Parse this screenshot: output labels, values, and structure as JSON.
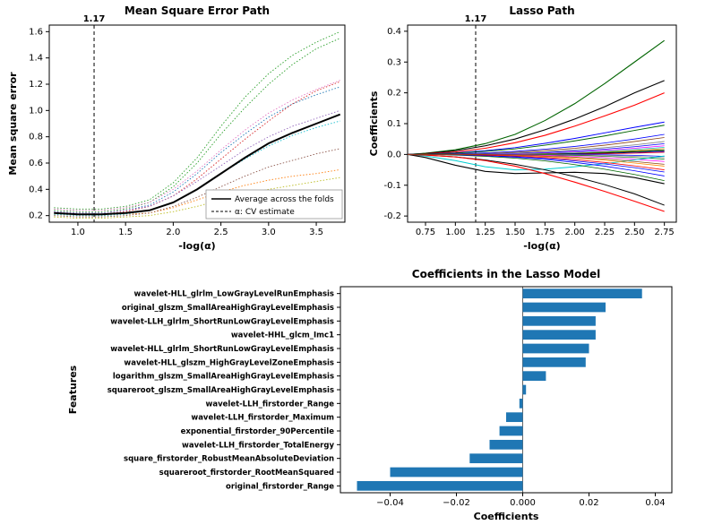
{
  "background_color": "#ffffff",
  "font_family": "DejaVu Sans, Arial, sans-serif",
  "mse_chart": {
    "type": "line",
    "title": "Mean Square Error Path",
    "title_fontsize": 12,
    "xlabel": "-log(α)",
    "ylabel": "Mean square error",
    "label_fontsize": 11,
    "xlim": [
      0.7,
      3.8
    ],
    "ylim": [
      0.15,
      1.65
    ],
    "xtick_step": 0.5,
    "xtick_start": 1.0,
    "ytick_step": 0.2,
    "ytick_start": 0.2,
    "cv_line_x": 1.17,
    "cv_line_label": "1.17",
    "grid_color": "#e0e0e0",
    "border_color": "#000000",
    "legend_items": [
      {
        "label": "Average across the folds",
        "style": "solid",
        "color": "#000000"
      },
      {
        "label": "α: CV estimate",
        "style": "dashed",
        "color": "#000000"
      }
    ],
    "x_values": [
      0.75,
      1.0,
      1.25,
      1.5,
      1.75,
      2.0,
      2.25,
      2.5,
      2.75,
      3.0,
      3.25,
      3.5,
      3.75
    ],
    "average_series": {
      "color": "#000000",
      "width": 2.0,
      "style": "solid",
      "y": [
        0.22,
        0.21,
        0.21,
        0.22,
        0.24,
        0.3,
        0.4,
        0.52,
        0.64,
        0.75,
        0.83,
        0.9,
        0.97
      ]
    },
    "fold_series": [
      {
        "color": "#1f77b4",
        "width": 0.9,
        "style": "dotted",
        "y": [
          0.23,
          0.22,
          0.22,
          0.24,
          0.28,
          0.38,
          0.52,
          0.68,
          0.82,
          0.95,
          1.05,
          1.12,
          1.18
        ]
      },
      {
        "color": "#ff7f0e",
        "width": 0.9,
        "style": "dotted",
        "y": [
          0.21,
          0.2,
          0.2,
          0.21,
          0.22,
          0.26,
          0.32,
          0.38,
          0.43,
          0.47,
          0.5,
          0.52,
          0.55
        ]
      },
      {
        "color": "#2ca02c",
        "width": 0.9,
        "style": "dotted",
        "y": [
          0.24,
          0.23,
          0.23,
          0.25,
          0.3,
          0.42,
          0.6,
          0.82,
          1.02,
          1.2,
          1.35,
          1.47,
          1.55
        ]
      },
      {
        "color": "#d62728",
        "width": 0.9,
        "style": "dotted",
        "y": [
          0.22,
          0.21,
          0.21,
          0.23,
          0.27,
          0.35,
          0.48,
          0.63,
          0.78,
          0.92,
          1.05,
          1.15,
          1.22
        ]
      },
      {
        "color": "#9467bd",
        "width": 0.9,
        "style": "dotted",
        "y": [
          0.23,
          0.22,
          0.22,
          0.24,
          0.27,
          0.35,
          0.46,
          0.58,
          0.7,
          0.8,
          0.88,
          0.94,
          1.0
        ]
      },
      {
        "color": "#8c564b",
        "width": 0.9,
        "style": "dotted",
        "y": [
          0.2,
          0.19,
          0.19,
          0.2,
          0.22,
          0.27,
          0.34,
          0.42,
          0.5,
          0.57,
          0.62,
          0.67,
          0.71
        ]
      },
      {
        "color": "#e377c2",
        "width": 0.9,
        "style": "dotted",
        "y": [
          0.25,
          0.24,
          0.24,
          0.26,
          0.3,
          0.4,
          0.54,
          0.7,
          0.85,
          0.98,
          1.08,
          1.16,
          1.23
        ]
      },
      {
        "color": "#bcbd22",
        "width": 0.9,
        "style": "dotted",
        "y": [
          0.19,
          0.18,
          0.18,
          0.19,
          0.2,
          0.23,
          0.27,
          0.32,
          0.36,
          0.4,
          0.43,
          0.46,
          0.49
        ]
      },
      {
        "color": "#17becf",
        "width": 0.9,
        "style": "dotted",
        "y": [
          0.21,
          0.2,
          0.2,
          0.21,
          0.24,
          0.3,
          0.4,
          0.52,
          0.63,
          0.73,
          0.81,
          0.87,
          0.92
        ]
      },
      {
        "color": "#2ca02c",
        "width": 0.9,
        "style": "dotted",
        "y": [
          0.26,
          0.25,
          0.25,
          0.27,
          0.32,
          0.45,
          0.64,
          0.88,
          1.1,
          1.28,
          1.42,
          1.52,
          1.6
        ]
      }
    ]
  },
  "lasso_chart": {
    "type": "line",
    "title": "Lasso Path",
    "title_fontsize": 12,
    "xlabel": "-log(α)",
    "ylabel": "Coefficients",
    "label_fontsize": 11,
    "xlim": [
      0.6,
      2.85
    ],
    "ylim": [
      -0.22,
      0.42
    ],
    "xticks": [
      0.75,
      1.0,
      1.25,
      1.5,
      1.75,
      2.0,
      2.25,
      2.5,
      2.75
    ],
    "yticks": [
      -0.2,
      -0.1,
      0.0,
      0.1,
      0.2,
      0.3,
      0.4
    ],
    "cv_line_x": 1.17,
    "cv_line_label": "1.17",
    "border_color": "#000000",
    "x_values": [
      0.6,
      0.75,
      1.0,
      1.25,
      1.5,
      1.75,
      2.0,
      2.25,
      2.5,
      2.75
    ],
    "series": [
      {
        "color": "#006400",
        "width": 1.1,
        "y": [
          0,
          0.004,
          0.015,
          0.035,
          0.065,
          0.11,
          0.165,
          0.23,
          0.3,
          0.37
        ]
      },
      {
        "color": "#000000",
        "width": 1.1,
        "y": [
          0,
          0.003,
          0.012,
          0.028,
          0.05,
          0.08,
          0.115,
          0.155,
          0.2,
          0.24
        ]
      },
      {
        "color": "#ff0000",
        "width": 1.1,
        "y": [
          0,
          0.002,
          0.008,
          0.02,
          0.038,
          0.062,
          0.092,
          0.125,
          0.16,
          0.2
        ]
      },
      {
        "color": "#0000ff",
        "width": 1.0,
        "y": [
          0,
          0.001,
          0.005,
          0.012,
          0.022,
          0.036,
          0.052,
          0.07,
          0.088,
          0.105
        ]
      },
      {
        "color": "#006400",
        "width": 1.0,
        "y": [
          0,
          0.001,
          0.004,
          0.01,
          0.018,
          0.03,
          0.044,
          0.06,
          0.078,
          0.095
        ]
      },
      {
        "color": "#0000ff",
        "width": 0.8,
        "y": [
          0,
          0,
          0.002,
          0.005,
          0.01,
          0.017,
          0.026,
          0.037,
          0.05,
          0.065
        ]
      },
      {
        "color": "#8b4513",
        "width": 0.8,
        "y": [
          0,
          0,
          0.001,
          0.003,
          0.007,
          0.013,
          0.02,
          0.03,
          0.042,
          0.055
        ]
      },
      {
        "color": "#808080",
        "width": 0.8,
        "y": [
          0,
          0,
          0,
          0.002,
          0.005,
          0.009,
          0.015,
          0.022,
          0.031,
          0.042
        ]
      },
      {
        "color": "#0000ff",
        "width": 0.8,
        "y": [
          0,
          0,
          0,
          0.001,
          0.003,
          0.006,
          0.011,
          0.017,
          0.025,
          0.035
        ]
      },
      {
        "color": "#ff00ff",
        "width": 0.8,
        "y": [
          0,
          0,
          0,
          0,
          0.002,
          0.004,
          0.008,
          0.013,
          0.02,
          0.028
        ]
      },
      {
        "color": "#00ced1",
        "width": 0.8,
        "y": [
          0,
          0,
          0,
          0,
          0.001,
          0.003,
          0.006,
          0.01,
          0.016,
          0.023
        ]
      },
      {
        "color": "#ff8c00",
        "width": 0.8,
        "y": [
          0,
          0,
          0,
          0,
          0,
          0.002,
          0.004,
          0.008,
          0.013,
          0.019
        ]
      },
      {
        "color": "#006400",
        "width": 0.8,
        "y": [
          0,
          0,
          0,
          0,
          0,
          0.001,
          0.003,
          0.006,
          0.01,
          0.015
        ]
      },
      {
        "color": "#000000",
        "width": 0.8,
        "y": [
          0,
          0,
          0,
          0,
          0,
          0,
          0.002,
          0.004,
          0.008,
          0.012
        ]
      },
      {
        "color": "#0000ff",
        "width": 0.7,
        "y": [
          0,
          0,
          0,
          0,
          0,
          0,
          0.001,
          0.003,
          0.005,
          0.009
        ]
      },
      {
        "color": "#ff0000",
        "width": 0.7,
        "y": [
          0,
          0,
          0,
          0,
          0,
          0,
          0,
          0.002,
          0.004,
          0.007
        ]
      },
      {
        "color": "#0000ff",
        "width": 0.7,
        "y": [
          0,
          0,
          0,
          0,
          0,
          0,
          0,
          -0.001,
          -0.003,
          -0.006
        ]
      },
      {
        "color": "#808080",
        "width": 0.7,
        "y": [
          0,
          0,
          0,
          0,
          0,
          0,
          -0.001,
          -0.003,
          -0.006,
          -0.01
        ]
      },
      {
        "color": "#006400",
        "width": 0.7,
        "y": [
          0,
          0,
          0,
          0,
          0,
          -0.001,
          -0.003,
          -0.006,
          -0.01,
          -0.015
        ]
      },
      {
        "color": "#ff00ff",
        "width": 0.7,
        "y": [
          0,
          0,
          0,
          0,
          -0.001,
          -0.003,
          -0.006,
          -0.01,
          -0.016,
          -0.023
        ]
      },
      {
        "color": "#00ced1",
        "width": 1.0,
        "y": [
          0,
          -0.005,
          -0.02,
          -0.04,
          -0.05,
          -0.048,
          -0.04,
          -0.03,
          -0.018,
          -0.005
        ]
      },
      {
        "color": "#ff8c00",
        "width": 0.8,
        "y": [
          0,
          0,
          0,
          -0.001,
          -0.003,
          -0.007,
          -0.012,
          -0.019,
          -0.028,
          -0.038
        ]
      },
      {
        "color": "#0000ff",
        "width": 0.8,
        "y": [
          0,
          0,
          -0.001,
          -0.003,
          -0.007,
          -0.013,
          -0.021,
          -0.031,
          -0.043,
          -0.057
        ]
      },
      {
        "color": "#000000",
        "width": 1.1,
        "y": [
          0,
          -0.01,
          -0.035,
          -0.055,
          -0.062,
          -0.06,
          -0.058,
          -0.062,
          -0.075,
          -0.095
        ]
      },
      {
        "color": "#000000",
        "width": 1.0,
        "y": [
          0,
          -0.002,
          -0.008,
          -0.018,
          -0.032,
          -0.05,
          -0.072,
          -0.098,
          -0.128,
          -0.165
        ]
      },
      {
        "color": "#ff0000",
        "width": 1.1,
        "y": [
          0,
          -0.002,
          -0.008,
          -0.02,
          -0.038,
          -0.062,
          -0.09,
          -0.12,
          -0.152,
          -0.185
        ]
      },
      {
        "color": "#006400",
        "width": 0.8,
        "y": [
          0,
          0,
          -0.002,
          -0.006,
          -0.012,
          -0.021,
          -0.033,
          -0.048,
          -0.065,
          -0.085
        ]
      },
      {
        "color": "#0000ff",
        "width": 0.8,
        "y": [
          0,
          0,
          -0.001,
          -0.004,
          -0.009,
          -0.016,
          -0.026,
          -0.038,
          -0.053,
          -0.07
        ]
      },
      {
        "color": "#ff0000",
        "width": 0.8,
        "y": [
          0,
          0,
          0,
          -0.002,
          -0.005,
          -0.01,
          -0.017,
          -0.026,
          -0.037,
          -0.05
        ]
      },
      {
        "color": "#8b4513",
        "width": 0.7,
        "y": [
          0,
          0,
          0,
          0,
          -0.002,
          -0.005,
          -0.009,
          -0.015,
          -0.023,
          -0.032
        ]
      }
    ]
  },
  "coef_chart": {
    "type": "barh",
    "title": "Coefficients in the Lasso Model",
    "title_fontsize": 13,
    "xlabel": "Coefficients",
    "ylabel": "Features",
    "label_fontsize": 11,
    "bar_color": "#1f77b4",
    "xlim": [
      -0.055,
      0.045
    ],
    "xticks": [
      -0.04,
      -0.02,
      0.0,
      0.02,
      0.04
    ],
    "xtick_labels": [
      "−0.04",
      "−0.02",
      "0.000",
      "0.02",
      "0.04"
    ],
    "border_color": "#000000",
    "features": [
      {
        "name": "wavelet-HLL_glrlm_LowGrayLevelRunEmphasis",
        "value": 0.036
      },
      {
        "name": "original_glszm_SmallAreaHighGrayLevelEmphasis",
        "value": 0.025
      },
      {
        "name": "wavelet-LLH_glrlm_ShortRunLowGrayLevelEmphasis",
        "value": 0.022
      },
      {
        "name": "wavelet-HHL_glcm_Imc1",
        "value": 0.022
      },
      {
        "name": "wavelet-HLL_glrlm_ShortRunLowGrayLevelEmphasis",
        "value": 0.02
      },
      {
        "name": "wavelet-HLL_glszm_HighGrayLevelZoneEmphasis",
        "value": 0.019
      },
      {
        "name": "logarithm_glszm_SmallAreaHighGrayLevelEmphasis",
        "value": 0.007
      },
      {
        "name": "squareroot_glszm_SmallAreaHighGrayLevelEmphasis",
        "value": 0.001
      },
      {
        "name": "wavelet-LLH_firstorder_Range",
        "value": -0.001
      },
      {
        "name": "wavelet-LLH_firstorder_Maximum",
        "value": -0.005
      },
      {
        "name": "exponential_firstorder_90Percentile",
        "value": -0.007
      },
      {
        "name": "wavelet-LLH_firstorder_TotalEnergy",
        "value": -0.01
      },
      {
        "name": "square_firstorder_RobustMeanAbsoluteDeviation",
        "value": -0.016
      },
      {
        "name": "squareroot_firstorder_RootMeanSquared",
        "value": -0.04
      },
      {
        "name": "original_firstorder_Range",
        "value": -0.05
      }
    ]
  }
}
